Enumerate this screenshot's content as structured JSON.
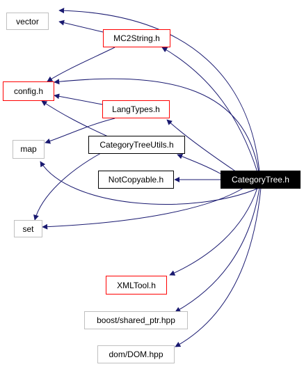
{
  "colors": {
    "edge": "#191970",
    "border_gray": "#bfbfbf",
    "border_red": "#ff0000",
    "border_black": "#000000",
    "focus_fill": "#000000",
    "focus_text": "#ffffff",
    "text": "#000000"
  },
  "nodes": {
    "vector": {
      "label": "vector",
      "style": "gray"
    },
    "mc2string": {
      "label": "MC2String.h",
      "style": "red"
    },
    "config": {
      "label": "config.h",
      "style": "red"
    },
    "langtypes": {
      "label": "LangTypes.h",
      "style": "red"
    },
    "map": {
      "label": "map",
      "style": "gray"
    },
    "categorytreeutils": {
      "label": "CategoryTreeUtils.h",
      "style": "black"
    },
    "notcopyable": {
      "label": "NotCopyable.h",
      "style": "black"
    },
    "categorytree": {
      "label": "CategoryTree.h",
      "style": "focus"
    },
    "set": {
      "label": "set",
      "style": "gray"
    },
    "xmltool": {
      "label": "XMLTool.h",
      "style": "red"
    },
    "shared_ptr": {
      "label": "boost/shared_ptr.hpp",
      "style": "gray"
    },
    "dom": {
      "label": "dom/DOM.hpp",
      "style": "gray"
    }
  },
  "edges": [
    {
      "from": "categorytree",
      "to": "vector"
    },
    {
      "from": "categorytree",
      "to": "mc2string"
    },
    {
      "from": "categorytree",
      "to": "config"
    },
    {
      "from": "categorytree",
      "to": "langtypes"
    },
    {
      "from": "categorytree",
      "to": "categorytreeutils"
    },
    {
      "from": "categorytree",
      "to": "notcopyable"
    },
    {
      "from": "categorytree",
      "to": "map"
    },
    {
      "from": "categorytree",
      "to": "set"
    },
    {
      "from": "categorytree",
      "to": "xmltool"
    },
    {
      "from": "categorytree",
      "to": "shared_ptr"
    },
    {
      "from": "categorytree",
      "to": "dom"
    },
    {
      "from": "mc2string",
      "to": "vector"
    },
    {
      "from": "mc2string",
      "to": "config"
    },
    {
      "from": "langtypes",
      "to": "config"
    },
    {
      "from": "langtypes",
      "to": "map"
    },
    {
      "from": "categorytreeutils",
      "to": "config"
    },
    {
      "from": "categorytreeutils",
      "to": "set"
    }
  ]
}
